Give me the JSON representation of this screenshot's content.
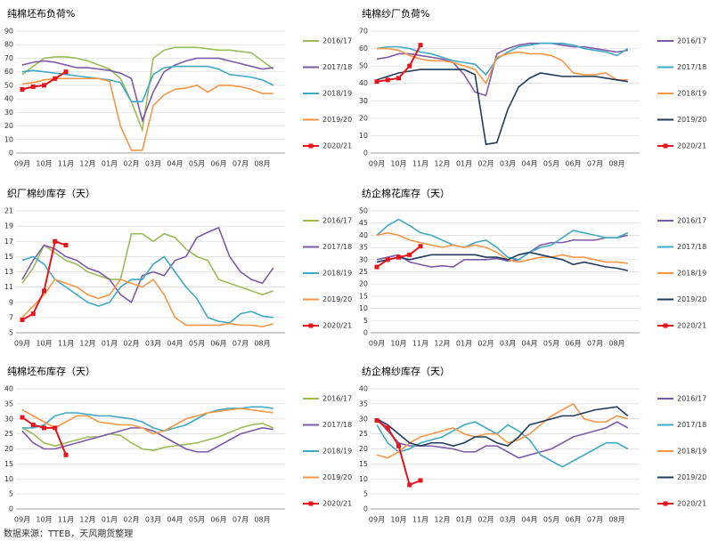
{
  "chart_data": [
    {
      "type": "line",
      "title": "纯棉坯布负荷%",
      "categories": [
        "09月",
        null,
        "10月",
        null,
        "11月",
        null,
        "12月",
        null,
        "01月",
        null,
        "02月",
        null,
        "03月",
        null,
        "04月",
        null,
        "05月",
        null,
        "06月",
        null,
        "07月",
        null,
        "08月",
        null
      ],
      "ylim": [
        0,
        90
      ],
      "yticks": [
        0,
        10,
        20,
        30,
        40,
        50,
        60,
        70,
        80,
        90
      ],
      "grid": true,
      "series": [
        {
          "name": "2016/17",
          "color": "#9bbb59",
          "values": [
            58,
            64,
            70,
            71,
            71,
            70,
            68,
            65,
            62,
            55,
            38,
            17,
            70,
            76,
            78,
            78,
            78,
            77,
            76,
            76,
            75,
            74,
            68,
            62
          ]
        },
        {
          "name": "2017/18",
          "color": "#7b5aa6",
          "values": [
            65,
            67,
            68,
            67,
            65,
            63,
            63,
            62,
            61,
            59,
            55,
            24,
            45,
            60,
            65,
            68,
            70,
            70,
            70,
            68,
            66,
            64,
            62,
            63
          ]
        },
        {
          "name": "2018/19",
          "color": "#3fa8c4",
          "values": [
            60,
            61,
            60,
            59,
            58,
            57,
            56,
            55,
            54,
            52,
            38,
            38,
            58,
            63,
            64,
            64,
            64,
            64,
            62,
            58,
            57,
            56,
            54,
            50
          ]
        },
        {
          "name": "2019/20",
          "color": "#f79646",
          "values": [
            51,
            52,
            54,
            55,
            55,
            55,
            55,
            55,
            53,
            20,
            2,
            2,
            35,
            43,
            47,
            48,
            50,
            45,
            50,
            50,
            49,
            47,
            44,
            44
          ]
        },
        {
          "name": "2020/21",
          "color": "#e8141b",
          "marker": "square",
          "values": [
            47,
            49,
            50,
            55,
            60,
            null,
            null,
            null,
            null,
            null,
            null,
            null,
            null,
            null,
            null,
            null,
            null,
            null,
            null,
            null,
            null,
            null,
            null,
            null
          ]
        }
      ]
    },
    {
      "type": "line",
      "title": "纯棉纱厂负荷%",
      "categories": [
        "09月",
        null,
        "10月",
        null,
        "11月",
        null,
        "12月",
        null,
        "01月",
        null,
        "02月",
        null,
        "03月",
        null,
        "04月",
        null,
        "05月",
        null,
        "06月",
        null,
        "07月",
        null,
        "08月",
        null
      ],
      "ylim": [
        0,
        70
      ],
      "yticks": [
        0,
        10,
        20,
        30,
        40,
        50,
        60,
        70
      ],
      "grid": true,
      "series": [
        {
          "name": "2016/17",
          "color": "#7b5aa6",
          "values": [
            54,
            55,
            57,
            57,
            56,
            55,
            54,
            52,
            45,
            35,
            33,
            57,
            60,
            62,
            63,
            63,
            63,
            62,
            61,
            61,
            60,
            59,
            58,
            59
          ]
        },
        {
          "name": "2017/18",
          "color": "#3fa8c4",
          "values": [
            60,
            61,
            61,
            60,
            58,
            57,
            55,
            53,
            52,
            51,
            45,
            54,
            58,
            61,
            62,
            63,
            63,
            63,
            62,
            60,
            59,
            58,
            56,
            60
          ]
        },
        {
          "name": "2018/19",
          "color": "#f79646",
          "values": [
            60,
            60,
            59,
            56,
            54,
            53,
            53,
            52,
            50,
            48,
            40,
            55,
            57,
            58,
            57,
            57,
            56,
            53,
            46,
            45,
            45,
            46,
            42,
            42
          ]
        },
        {
          "name": "2019/20",
          "color": "#1f3b5c",
          "values": [
            42,
            44,
            46,
            47,
            48,
            48,
            48,
            48,
            48,
            45,
            5,
            6,
            25,
            38,
            43,
            46,
            45,
            44,
            44,
            44,
            44,
            43,
            42,
            41
          ]
        },
        {
          "name": "2020/21",
          "color": "#e8141b",
          "marker": "square",
          "values": [
            41,
            42,
            43,
            50,
            62,
            null,
            null,
            null,
            null,
            null,
            null,
            null,
            null,
            null,
            null,
            null,
            null,
            null,
            null,
            null,
            null,
            null,
            null,
            null
          ]
        }
      ]
    },
    {
      "type": "line",
      "title": "织厂棉纱库存（天）",
      "categories": [
        "09月",
        null,
        "10月",
        null,
        "11月",
        null,
        "12月",
        null,
        "01月",
        null,
        "02月",
        null,
        "03月",
        null,
        "04月",
        null,
        "05月",
        null,
        "06月",
        null,
        "07月",
        null,
        "08月",
        null
      ],
      "ylim": [
        5,
        21
      ],
      "yticks": [
        5,
        7,
        9,
        11,
        13,
        15,
        17,
        19,
        21
      ],
      "grid": true,
      "series": [
        {
          "name": "2016/17",
          "color": "#9bbb59",
          "values": [
            11.5,
            13.5,
            16.5,
            15.5,
            14.5,
            14,
            13,
            12.5,
            12,
            12,
            18,
            18,
            17,
            18,
            17.5,
            16,
            15,
            14.5,
            12,
            11.5,
            11,
            10.5,
            10,
            10.5
          ]
        },
        {
          "name": "2017/18",
          "color": "#7b5aa6",
          "values": [
            12,
            14.5,
            16.5,
            16,
            15,
            14.5,
            13.5,
            13,
            12,
            10,
            9,
            12.5,
            13,
            12.5,
            14.5,
            15,
            17.5,
            18.2,
            18.8,
            15,
            13,
            12,
            11.5,
            13.5
          ]
        },
        {
          "name": "2018/19",
          "color": "#3fa8c4",
          "values": [
            14.5,
            15,
            14,
            12,
            11,
            10,
            9,
            8.5,
            9,
            11,
            12,
            12,
            14,
            15,
            13,
            11,
            9.5,
            7,
            6.5,
            6.3,
            7.5,
            7.8,
            7.2,
            7
          ]
        },
        {
          "name": "2019/20",
          "color": "#f79646",
          "values": [
            7,
            8.5,
            10,
            12,
            11.5,
            11,
            10,
            9.5,
            10,
            12,
            11.5,
            11,
            12,
            10,
            7,
            6,
            6,
            6,
            6,
            6.2,
            6,
            6,
            5.8,
            6.2
          ]
        },
        {
          "name": "2020/21",
          "color": "#e8141b",
          "marker": "square",
          "values": [
            6.7,
            7.5,
            10.5,
            17,
            16.5,
            null,
            null,
            null,
            null,
            null,
            null,
            null,
            null,
            null,
            null,
            null,
            null,
            null,
            null,
            null,
            null,
            null,
            null,
            null
          ]
        }
      ]
    },
    {
      "type": "line",
      "title": "纺企棉花库存（天）",
      "categories": [
        "09月",
        null,
        "10月",
        null,
        "11月",
        null,
        "12月",
        null,
        "01月",
        null,
        "02月",
        null,
        "03月",
        null,
        "04月",
        null,
        "05月",
        null,
        "06月",
        null,
        "07月",
        null,
        "08月",
        null
      ],
      "ylim": [
        0,
        50
      ],
      "yticks": [
        0,
        5,
        10,
        15,
        20,
        25,
        30,
        35,
        40,
        45,
        50
      ],
      "grid": true,
      "series": [
        {
          "name": "2016/17",
          "color": "#7b5aa6",
          "values": [
            30,
            31,
            32,
            29,
            28,
            27,
            27.5,
            27,
            30,
            30,
            30,
            30.5,
            29.5,
            30,
            33,
            36,
            37,
            37,
            38,
            38,
            38,
            39,
            39,
            40
          ]
        },
        {
          "name": "2017/18",
          "color": "#3fa8c4",
          "values": [
            40,
            44,
            46.5,
            44,
            41,
            40,
            38,
            36,
            35,
            37,
            38,
            35,
            31,
            30,
            33,
            35,
            36,
            39,
            42,
            41,
            40,
            39,
            39,
            41
          ]
        },
        {
          "name": "2018/19",
          "color": "#f79646",
          "values": [
            40,
            41,
            40,
            38,
            37,
            36,
            35,
            36,
            35,
            36,
            35,
            33,
            30,
            29,
            30,
            31,
            31,
            32,
            31,
            31,
            30,
            29,
            29,
            28.5
          ]
        },
        {
          "name": "2019/20",
          "color": "#1f3b5c",
          "values": [
            29,
            30,
            31,
            30,
            31,
            32,
            32,
            32,
            32,
            32,
            31,
            31,
            30,
            32,
            33,
            32,
            31,
            30,
            28,
            29,
            28,
            27,
            26.5,
            25.5
          ]
        },
        {
          "name": "2020/21",
          "color": "#e8141b",
          "marker": "square",
          "values": [
            27,
            30,
            31,
            32,
            35.5,
            null,
            null,
            null,
            null,
            null,
            null,
            null,
            null,
            null,
            null,
            null,
            null,
            null,
            null,
            null,
            null,
            null,
            null,
            null
          ]
        }
      ]
    },
    {
      "type": "line",
      "title": "纯棉坯布库存（天）",
      "categories": [
        "09月",
        null,
        "10月",
        null,
        "11月",
        null,
        "12月",
        null,
        "01月",
        null,
        "02月",
        null,
        "03月",
        null,
        "04月",
        null,
        "05月",
        null,
        "06月",
        null,
        "07月",
        null,
        "08月",
        null
      ],
      "ylim": [
        0,
        40
      ],
      "yticks": [
        0,
        5,
        10,
        15,
        20,
        25,
        30,
        35,
        40
      ],
      "grid": true,
      "series": [
        {
          "name": "2016/17",
          "color": "#9bbb59",
          "values": [
            27,
            25,
            22,
            21,
            22,
            23,
            24,
            24,
            25,
            24.5,
            22,
            20,
            19.5,
            20.5,
            21,
            21.5,
            22,
            23,
            24,
            25.5,
            27,
            28,
            28.5,
            27
          ]
        },
        {
          "name": "2017/18",
          "color": "#7b5aa6",
          "values": [
            26,
            22,
            20,
            20,
            21,
            22,
            23,
            24,
            25,
            26,
            27,
            27,
            26,
            24,
            22,
            20,
            19,
            19,
            21,
            23,
            25,
            26,
            27,
            26.5
          ]
        },
        {
          "name": "2018/19",
          "color": "#3fa8c4",
          "values": [
            27,
            27,
            28,
            31,
            32,
            32,
            31.5,
            31,
            31,
            30.5,
            30,
            29,
            27,
            26,
            27,
            28,
            30,
            32,
            33,
            33.5,
            33.5,
            34,
            34,
            33.5
          ]
        },
        {
          "name": "2019/20",
          "color": "#f79646",
          "values": [
            33,
            31,
            29,
            27,
            29,
            31,
            31,
            29,
            28.5,
            28,
            28,
            27,
            25,
            26,
            28,
            30,
            31,
            32,
            32.5,
            33,
            33.5,
            33,
            32.5,
            32
          ]
        },
        {
          "name": "2020/21",
          "color": "#e8141b",
          "marker": "square",
          "values": [
            30.5,
            28,
            27,
            27,
            18,
            null,
            null,
            null,
            null,
            null,
            null,
            null,
            null,
            null,
            null,
            null,
            null,
            null,
            null,
            null,
            null,
            null,
            null,
            null
          ]
        }
      ]
    },
    {
      "type": "line",
      "title": "纺企棉纱库存（天）",
      "categories": [
        "09月",
        null,
        "10月",
        null,
        "11月",
        null,
        "12月",
        null,
        "01月",
        null,
        "02月",
        null,
        "03月",
        null,
        "04月",
        null,
        "05月",
        null,
        "06月",
        null,
        "07月",
        null,
        "08月",
        null
      ],
      "ylim": [
        0,
        40
      ],
      "yticks": [
        0,
        5,
        10,
        15,
        20,
        25,
        30,
        35,
        40
      ],
      "grid": true,
      "series": [
        {
          "name": "2016/17",
          "color": "#7b5aa6",
          "values": [
            30,
            26,
            22,
            21,
            21,
            21,
            20.5,
            20,
            19,
            19,
            21,
            21,
            19,
            17,
            18,
            19,
            20,
            22,
            24,
            25,
            26,
            27,
            29,
            27
          ]
        },
        {
          "name": "2017/18",
          "color": "#3fa8c4",
          "values": [
            28,
            22,
            19,
            20,
            22,
            23,
            24,
            26,
            28,
            29,
            27,
            25,
            28,
            26,
            23,
            18,
            16,
            14,
            16,
            18,
            20,
            22,
            22,
            20
          ]
        },
        {
          "name": "2018/19",
          "color": "#f79646",
          "values": [
            18,
            17,
            19,
            22,
            24,
            25,
            26,
            27,
            25,
            24,
            25,
            25,
            22,
            23,
            25,
            28,
            31,
            33,
            35,
            30,
            29,
            29,
            31,
            30
          ]
        },
        {
          "name": "2019/20",
          "color": "#1f3b5c",
          "values": [
            30,
            28,
            25,
            22,
            21,
            22,
            22,
            21,
            22,
            24,
            24,
            22,
            21,
            24,
            28,
            29,
            30,
            31,
            31,
            32,
            33,
            33.5,
            34,
            31
          ]
        },
        {
          "name": "2020/21",
          "color": "#e8141b",
          "marker": "square",
          "values": [
            29.5,
            27,
            21,
            8,
            9.5,
            null,
            null,
            null,
            null,
            null,
            null,
            null,
            null,
            null,
            null,
            null,
            null,
            null,
            null,
            null,
            null,
            null,
            null,
            null
          ]
        }
      ]
    }
  ],
  "source": "数据来源：TTEB，天风期货整理"
}
